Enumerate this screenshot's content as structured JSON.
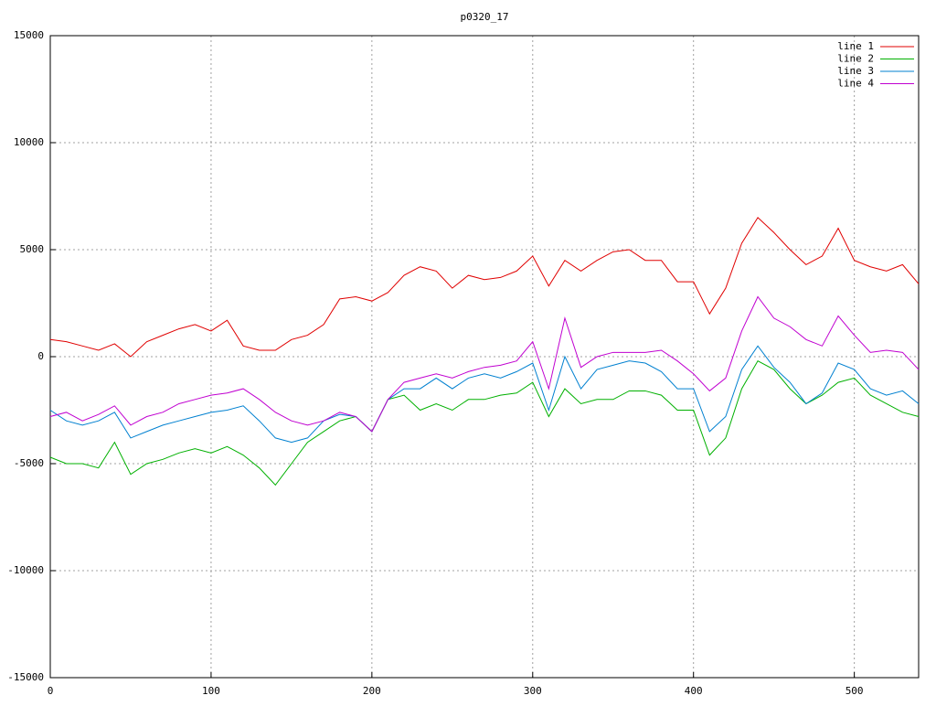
{
  "chart_data": {
    "type": "line",
    "title": "p0320_17",
    "x": [
      0,
      10,
      20,
      30,
      40,
      50,
      60,
      70,
      80,
      90,
      100,
      110,
      120,
      130,
      140,
      150,
      160,
      170,
      180,
      190,
      200,
      210,
      220,
      230,
      240,
      250,
      260,
      270,
      280,
      290,
      300,
      310,
      320,
      330,
      340,
      350,
      360,
      370,
      380,
      390,
      400,
      410,
      420,
      430,
      440,
      450,
      460,
      470,
      480,
      490,
      500,
      510,
      520,
      530,
      540
    ],
    "series": [
      {
        "name": "line 1",
        "color": "#e00000",
        "values": [
          800,
          700,
          500,
          300,
          600,
          0,
          700,
          1000,
          1300,
          1500,
          1200,
          1700,
          500,
          300,
          300,
          800,
          1000,
          1500,
          2700,
          2800,
          2600,
          3000,
          3800,
          4200,
          4000,
          3200,
          3800,
          3600,
          3700,
          4000,
          4700,
          3300,
          4500,
          4000,
          4500,
          4900,
          5000,
          4500,
          4500,
          3500,
          3500,
          2000,
          3200,
          5300,
          6500,
          5800,
          5000,
          4300,
          4700,
          6000,
          4500,
          4200,
          4000,
          4300,
          3400
        ]
      },
      {
        "name": "line 2",
        "color": "#00b000",
        "values": [
          -4700,
          -5000,
          -5000,
          -5200,
          -4000,
          -5500,
          -5000,
          -4800,
          -4500,
          -4300,
          -4500,
          -4200,
          -4600,
          -5200,
          -6000,
          -5000,
          -4000,
          -3500,
          -3000,
          -2800,
          -3500,
          -2000,
          -1800,
          -2500,
          -2200,
          -2500,
          -2000,
          -2000,
          -1800,
          -1700,
          -1200,
          -2800,
          -1500,
          -2200,
          -2000,
          -2000,
          -1600,
          -1600,
          -1800,
          -2500,
          -2500,
          -4600,
          -3800,
          -1500,
          -200,
          -600,
          -1500,
          -2200,
          -1800,
          -1200,
          -1000,
          -1800,
          -2200,
          -2600,
          -2800
        ]
      },
      {
        "name": "line 3",
        "color": "#0080d0",
        "values": [
          -2500,
          -3000,
          -3200,
          -3000,
          -2600,
          -3800,
          -3500,
          -3200,
          -3000,
          -2800,
          -2600,
          -2500,
          -2300,
          -3000,
          -3800,
          -4000,
          -3800,
          -3000,
          -2700,
          -2800,
          -3500,
          -2000,
          -1500,
          -1500,
          -1000,
          -1500,
          -1000,
          -800,
          -1000,
          -700,
          -300,
          -2500,
          0,
          -1500,
          -600,
          -400,
          -200,
          -300,
          -700,
          -1500,
          -1500,
          -3500,
          -2800,
          -600,
          500,
          -500,
          -1200,
          -2200,
          -1700,
          -300,
          -600,
          -1500,
          -1800,
          -1600,
          -2200
        ]
      },
      {
        "name": "line 4",
        "color": "#c000d0",
        "values": [
          -2800,
          -2600,
          -3000,
          -2700,
          -2300,
          -3200,
          -2800,
          -2600,
          -2200,
          -2000,
          -1800,
          -1700,
          -1500,
          -2000,
          -2600,
          -3000,
          -3200,
          -3000,
          -2600,
          -2800,
          -3500,
          -2000,
          -1200,
          -1000,
          -800,
          -1000,
          -700,
          -500,
          -400,
          -200,
          700,
          -1500,
          1800,
          -500,
          0,
          200,
          200,
          200,
          300,
          -200,
          -800,
          -1600,
          -1000,
          1200,
          2800,
          1800,
          1400,
          800,
          500,
          1900,
          1000,
          200,
          300,
          200,
          -600
        ]
      }
    ],
    "xlim": [
      0,
      540
    ],
    "xticks": [
      0,
      100,
      200,
      300,
      400,
      500
    ],
    "ylim": [
      -15000,
      15000
    ],
    "yticks": [
      -15000,
      -10000,
      -5000,
      0,
      5000,
      10000,
      15000
    ],
    "grid": true,
    "legend": "top-right"
  }
}
